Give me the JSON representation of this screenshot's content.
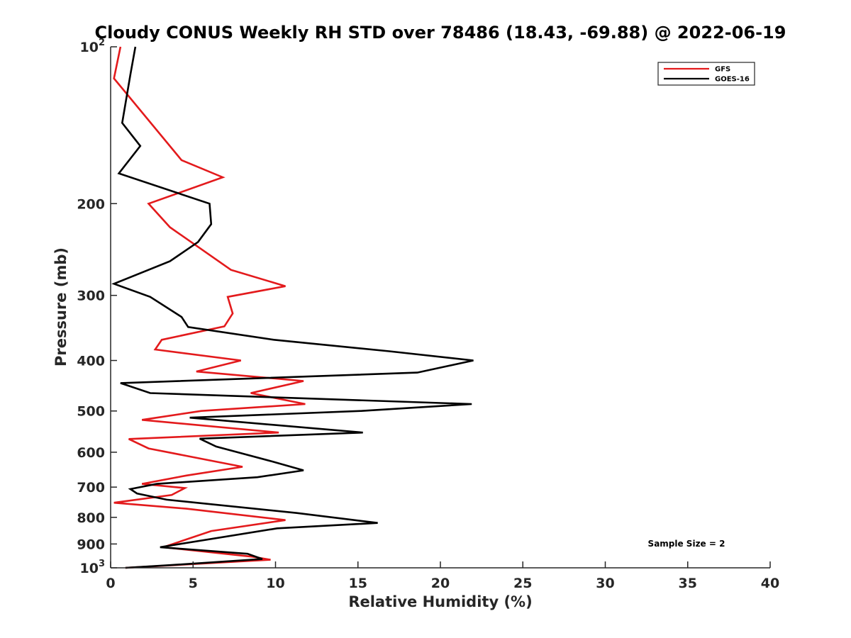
{
  "chart_data": {
    "type": "line",
    "title": "Cloudy CONUS Weekly RH STD over 78486 (18.43, -69.88) @ 2022-06-19",
    "xlabel": "Relative Humidity (%)",
    "ylabel": "Pressure (mb)",
    "xlim": [
      0,
      40
    ],
    "ylim": [
      100,
      1000
    ],
    "y_scale": "log",
    "y_reversed": true,
    "grid": false,
    "legend_position": "top-right",
    "x_ticks": [
      0,
      5,
      10,
      15,
      20,
      25,
      30,
      35,
      40
    ],
    "x_tick_labels": [
      "0",
      "5",
      "10",
      "15",
      "20",
      "25",
      "30",
      "35",
      "40"
    ],
    "y_ticks": [
      100,
      200,
      300,
      400,
      500,
      600,
      700,
      800,
      900,
      1000
    ],
    "y_tick_labels": [
      {
        "base": "10",
        "exp": "2"
      },
      {
        "base": "200",
        "exp": ""
      },
      {
        "base": "300",
        "exp": ""
      },
      {
        "base": "400",
        "exp": ""
      },
      {
        "base": "500",
        "exp": ""
      },
      {
        "base": "600",
        "exp": ""
      },
      {
        "base": "700",
        "exp": ""
      },
      {
        "base": "800",
        "exp": ""
      },
      {
        "base": "900",
        "exp": ""
      },
      {
        "base": "10",
        "exp": "3"
      }
    ],
    "annotation": "Sample Size = 2",
    "series": [
      {
        "name": "GFS",
        "color": "#e31a1c",
        "points": [
          [
            0.6,
            100
          ],
          [
            0.2,
            115
          ],
          [
            4.3,
            165
          ],
          [
            6.8,
            178
          ],
          [
            2.3,
            200
          ],
          [
            3.6,
            222
          ],
          [
            7.3,
            268
          ],
          [
            10.6,
            288
          ],
          [
            7.1,
            302
          ],
          [
            7.4,
            325
          ],
          [
            6.9,
            344
          ],
          [
            3.1,
            365
          ],
          [
            2.7,
            381
          ],
          [
            7.9,
            400
          ],
          [
            5.2,
            420
          ],
          [
            11.7,
            438
          ],
          [
            8.5,
            462
          ],
          [
            11.8,
            485
          ],
          [
            5.5,
            500
          ],
          [
            1.9,
            520
          ],
          [
            10.2,
            550
          ],
          [
            1.1,
            566
          ],
          [
            2.3,
            590
          ],
          [
            8.0,
            640
          ],
          [
            4.6,
            665
          ],
          [
            1.9,
            690
          ],
          [
            4.5,
            703
          ],
          [
            3.7,
            725
          ],
          [
            0.2,
            750
          ],
          [
            4.6,
            770
          ],
          [
            10.6,
            810
          ],
          [
            6.1,
            850
          ],
          [
            3.2,
            913
          ],
          [
            8.6,
            952
          ],
          [
            9.7,
            965
          ],
          [
            0.9,
            1000
          ]
        ]
      },
      {
        "name": "GOES-16",
        "color": "#000000",
        "points": [
          [
            1.5,
            100
          ],
          [
            1.2,
            113
          ],
          [
            0.7,
            140
          ],
          [
            1.8,
            155
          ],
          [
            0.5,
            175
          ],
          [
            6.0,
            200
          ],
          [
            6.1,
            219
          ],
          [
            5.3,
            237
          ],
          [
            3.6,
            258
          ],
          [
            0.2,
            285
          ],
          [
            2.4,
            302
          ],
          [
            4.3,
            330
          ],
          [
            4.7,
            345
          ],
          [
            9.9,
            365
          ],
          [
            16.9,
            384
          ],
          [
            22.0,
            400
          ],
          [
            18.6,
            422
          ],
          [
            0.6,
            442
          ],
          [
            2.4,
            462
          ],
          [
            21.9,
            485
          ],
          [
            15.2,
            500
          ],
          [
            4.8,
            515
          ],
          [
            15.3,
            550
          ],
          [
            5.4,
            565
          ],
          [
            6.4,
            585
          ],
          [
            9.8,
            625
          ],
          [
            11.7,
            650
          ],
          [
            8.9,
            670
          ],
          [
            2.8,
            690
          ],
          [
            1.2,
            706
          ],
          [
            1.6,
            720
          ],
          [
            3.4,
            740
          ],
          [
            11.3,
            785
          ],
          [
            16.2,
            820
          ],
          [
            10.1,
            840
          ],
          [
            3.0,
            913
          ],
          [
            4.0,
            918
          ],
          [
            8.3,
            940
          ],
          [
            9.2,
            962
          ],
          [
            3.7,
            988
          ],
          [
            0.9,
            1000
          ]
        ]
      }
    ]
  }
}
